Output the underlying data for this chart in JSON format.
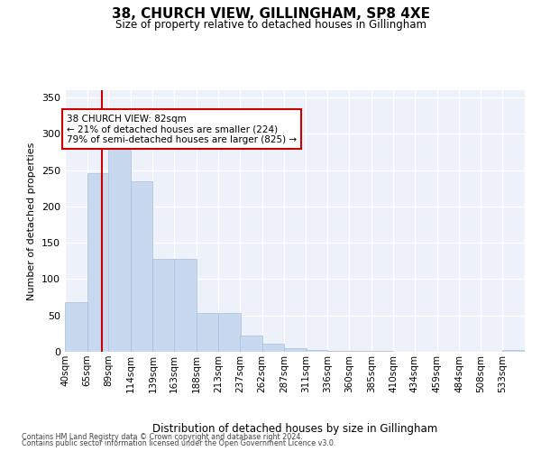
{
  "title": "38, CHURCH VIEW, GILLINGHAM, SP8 4XE",
  "subtitle": "Size of property relative to detached houses in Gillingham",
  "xlabel": "Distribution of detached houses by size in Gillingham",
  "ylabel": "Number of detached properties",
  "bar_color": "#c8d8ee",
  "bar_edge_color": "#a8bedd",
  "background_color": "#edf2fa",
  "grid_color": "#ffffff",
  "annotation_text": "38 CHURCH VIEW: 82sqm\n← 21% of detached houses are smaller (224)\n79% of semi-detached houses are larger (825) →",
  "annotation_box_color": "#ffffff",
  "annotation_box_edge": "#cc0000",
  "vline_x": 82,
  "vline_color": "#cc0000",
  "bin_edges": [
    40,
    65,
    89,
    114,
    139,
    163,
    188,
    213,
    237,
    262,
    287,
    311,
    336,
    360,
    385,
    410,
    434,
    459,
    484,
    508,
    533
  ],
  "bar_heights": [
    68,
    246,
    287,
    235,
    128,
    128,
    53,
    53,
    22,
    11,
    5,
    2,
    1,
    1,
    1,
    0,
    0,
    0,
    0,
    0,
    2
  ],
  "ylim": [
    0,
    360
  ],
  "yticks": [
    0,
    50,
    100,
    150,
    200,
    250,
    300,
    350
  ],
  "footer_line1": "Contains HM Land Registry data © Crown copyright and database right 2024.",
  "footer_line2": "Contains public sector information licensed under the Open Government Licence v3.0."
}
